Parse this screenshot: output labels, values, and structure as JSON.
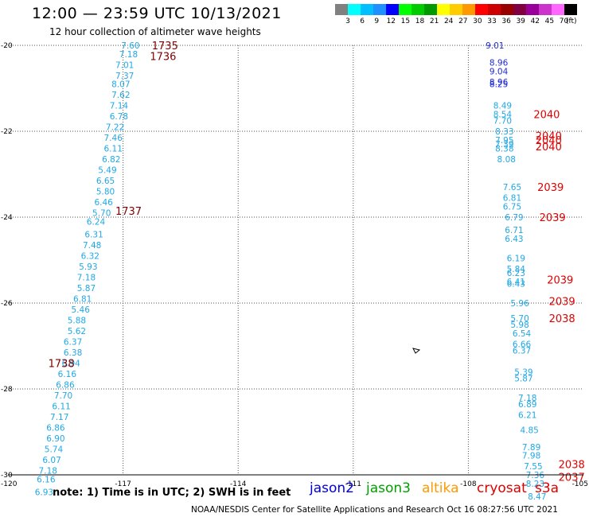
{
  "header": {
    "title": "12:00 — 23:59 UTC 10/13/2021",
    "subtitle": "12 hour collection of altimeter wave heights"
  },
  "color_scale": {
    "unit": "(ft)",
    "ticks": [
      "3",
      "6",
      "9",
      "12",
      "15",
      "18",
      "21",
      "24",
      "27",
      "30",
      "33",
      "36",
      "39",
      "42",
      "45",
      "70"
    ],
    "colors": [
      "#808080",
      "#00ffff",
      "#00bfff",
      "#1e90ff",
      "#0000ff",
      "#00ff00",
      "#00cc00",
      "#009900",
      "#ffff00",
      "#ffcc00",
      "#ff9900",
      "#ff0000",
      "#cc0000",
      "#990000",
      "#800040",
      "#990099",
      "#cc33cc",
      "#ff66ff",
      "#000000"
    ]
  },
  "axes": {
    "lat_labels": [
      "-20",
      "-22",
      "-24",
      "-26",
      "-28",
      "-30"
    ],
    "lon_labels": [
      "-120",
      "-117",
      "-114",
      "-111",
      "-108",
      "-105"
    ]
  },
  "pass_labels": {
    "west": [
      {
        "text": "1735",
        "lat": -20.0,
        "lon": -116.25
      },
      {
        "text": "1736",
        "lat": -20.25,
        "lon": -116.3
      },
      {
        "text": "1737",
        "lat": -23.85,
        "lon": -117.2
      },
      {
        "text": "1738",
        "lat": -27.4,
        "lon": -118.95
      }
    ],
    "east": [
      {
        "text": "2040",
        "lat": -21.6,
        "lon": -106.3
      },
      {
        "text": "2040",
        "lat": -22.1,
        "lon": -106.25
      },
      {
        "text": "2040",
        "lat": -22.2,
        "lon": -106.25
      },
      {
        "text": "2040",
        "lat": -22.35,
        "lon": -106.25
      },
      {
        "text": "2039",
        "lat": -23.3,
        "lon": -106.2
      },
      {
        "text": "2039",
        "lat": -24.0,
        "lon": -106.15
      },
      {
        "text": "2039",
        "lat": -25.45,
        "lon": -105.95
      },
      {
        "text": "2039",
        "lat": -25.95,
        "lon": -105.9
      },
      {
        "text": "2038",
        "lat": -26.35,
        "lon": -105.9
      },
      {
        "text": "2038",
        "lat": -29.75,
        "lon": -105.65
      },
      {
        "text": "2037",
        "lat": -30.05,
        "lon": -105.65
      }
    ]
  },
  "tracks": {
    "west": [
      {
        "v": "7.60",
        "lat": -20.0,
        "lon": -117.05
      },
      {
        "v": "7.18",
        "lat": -20.2,
        "lon": -117.1
      },
      {
        "v": "7.01",
        "lat": -20.45,
        "lon": -117.2
      },
      {
        "v": "7.37",
        "lat": -20.7,
        "lon": -117.2
      },
      {
        "v": "8.07",
        "lat": -20.9,
        "lon": -117.3
      },
      {
        "v": "7.62",
        "lat": -21.15,
        "lon": -117.3
      },
      {
        "v": "7.14",
        "lat": -21.4,
        "lon": -117.35
      },
      {
        "v": "6.78",
        "lat": -21.65,
        "lon": -117.35
      },
      {
        "v": "7.22",
        "lat": -21.9,
        "lon": -117.45
      },
      {
        "v": "7.46",
        "lat": -22.15,
        "lon": -117.5
      },
      {
        "v": "6.11",
        "lat": -22.4,
        "lon": -117.5
      },
      {
        "v": "6.82",
        "lat": -22.65,
        "lon": -117.55
      },
      {
        "v": "5.49",
        "lat": -22.9,
        "lon": -117.65
      },
      {
        "v": "6.65",
        "lat": -23.15,
        "lon": -117.7
      },
      {
        "v": "5.80",
        "lat": -23.4,
        "lon": -117.7
      },
      {
        "v": "6.46",
        "lat": -23.65,
        "lon": -117.75
      },
      {
        "v": "5.70",
        "lat": -23.9,
        "lon": -117.8
      },
      {
        "v": "6.24",
        "lat": -24.1,
        "lon": -117.95
      },
      {
        "v": "6.31",
        "lat": -24.4,
        "lon": -118.0
      },
      {
        "v": "7.48",
        "lat": -24.65,
        "lon": -118.05
      },
      {
        "v": "6.32",
        "lat": -24.9,
        "lon": -118.1
      },
      {
        "v": "5.93",
        "lat": -25.15,
        "lon": -118.15
      },
      {
        "v": "7.18",
        "lat": -25.4,
        "lon": -118.2
      },
      {
        "v": "5.87",
        "lat": -25.65,
        "lon": -118.2
      },
      {
        "v": "6.81",
        "lat": -25.9,
        "lon": -118.3
      },
      {
        "v": "5.46",
        "lat": -26.15,
        "lon": -118.35
      },
      {
        "v": "5.88",
        "lat": -26.4,
        "lon": -118.45
      },
      {
        "v": "5.62",
        "lat": -26.65,
        "lon": -118.45
      },
      {
        "v": "6.37",
        "lat": -26.9,
        "lon": -118.55
      },
      {
        "v": "6.38",
        "lat": -27.15,
        "lon": -118.55
      },
      {
        "v": "6.94",
        "lat": -27.4,
        "lon": -118.6
      },
      {
        "v": "6.16",
        "lat": -27.65,
        "lon": -118.7
      },
      {
        "v": "6.86",
        "lat": -27.9,
        "lon": -118.75
      },
      {
        "v": "7.70",
        "lat": -28.15,
        "lon": -118.8
      },
      {
        "v": "6.11",
        "lat": -28.4,
        "lon": -118.85
      },
      {
        "v": "7.17",
        "lat": -28.65,
        "lon": -118.9
      },
      {
        "v": "6.86",
        "lat": -28.9,
        "lon": -119.0
      },
      {
        "v": "6.90",
        "lat": -29.15,
        "lon": -119.0
      },
      {
        "v": "5.74",
        "lat": -29.4,
        "lon": -119.05
      },
      {
        "v": "6.07",
        "lat": -29.65,
        "lon": -119.1
      },
      {
        "v": "7.18",
        "lat": -29.9,
        "lon": -119.2
      },
      {
        "v": "6.16",
        "lat": -30.1,
        "lon": -119.25
      },
      {
        "v": "6.93",
        "lat": -30.4,
        "lon": -119.3
      }
    ],
    "east_blue": [
      {
        "v": "9.01",
        "lat": -20.0,
        "lon": -107.55
      },
      {
        "v": "8.96",
        "lat": -20.4,
        "lon": -107.45
      },
      {
        "v": "9.04",
        "lat": -20.6,
        "lon": -107.45
      },
      {
        "v": "8.96",
        "lat": -20.85,
        "lon": -107.45
      },
      {
        "v": "8.25",
        "lat": -20.9,
        "lon": -107.45
      }
    ],
    "east": [
      {
        "v": "8.49",
        "lat": -21.4,
        "lon": -107.35
      },
      {
        "v": "8.54",
        "lat": -21.6,
        "lon": -107.35
      },
      {
        "v": "7.70",
        "lat": -21.75,
        "lon": -107.35
      },
      {
        "v": "8.33",
        "lat": -22.0,
        "lon": -107.3
      },
      {
        "v": "7.95",
        "lat": -22.2,
        "lon": -107.3
      },
      {
        "v": "7.39",
        "lat": -22.3,
        "lon": -107.3
      },
      {
        "v": "8.38",
        "lat": -22.4,
        "lon": -107.3
      },
      {
        "v": "8.08",
        "lat": -22.65,
        "lon": -107.25
      },
      {
        "v": "7.65",
        "lat": -23.3,
        "lon": -107.1
      },
      {
        "v": "6.81",
        "lat": -23.55,
        "lon": -107.1
      },
      {
        "v": "6.75",
        "lat": -23.75,
        "lon": -107.1
      },
      {
        "v": "6.79",
        "lat": -24.0,
        "lon": -107.05
      },
      {
        "v": "6.71",
        "lat": -24.3,
        "lon": -107.05
      },
      {
        "v": "6.43",
        "lat": -24.5,
        "lon": -107.05
      },
      {
        "v": "6.19",
        "lat": -24.95,
        "lon": -107.0
      },
      {
        "v": "5.84",
        "lat": -25.2,
        "lon": -107.0
      },
      {
        "v": "6.23",
        "lat": -25.3,
        "lon": -107.0
      },
      {
        "v": "6.41",
        "lat": -25.5,
        "lon": -107.0
      },
      {
        "v": "6.43",
        "lat": -25.55,
        "lon": -107.0
      },
      {
        "v": "5.96",
        "lat": -26.0,
        "lon": -106.9
      },
      {
        "v": "5.70",
        "lat": -26.35,
        "lon": -106.9
      },
      {
        "v": "5.98",
        "lat": -26.5,
        "lon": -106.9
      },
      {
        "v": "6.54",
        "lat": -26.7,
        "lon": -106.85
      },
      {
        "v": "6.66",
        "lat": -26.95,
        "lon": -106.85
      },
      {
        "v": "6.37",
        "lat": -27.1,
        "lon": -106.85
      },
      {
        "v": "5.39",
        "lat": -27.6,
        "lon": -106.8
      },
      {
        "v": "5.87",
        "lat": -27.75,
        "lon": -106.8
      },
      {
        "v": "7.18",
        "lat": -28.2,
        "lon": -106.7
      },
      {
        "v": "6.89",
        "lat": -28.35,
        "lon": -106.7
      },
      {
        "v": "6.21",
        "lat": -28.6,
        "lon": -106.7
      },
      {
        "v": "4.85",
        "lat": -28.95,
        "lon": -106.65
      },
      {
        "v": "7.89",
        "lat": -29.35,
        "lon": -106.6
      },
      {
        "v": "7.98",
        "lat": -29.55,
        "lon": -106.6
      },
      {
        "v": "7.55",
        "lat": -29.8,
        "lon": -106.55
      },
      {
        "v": "7.36",
        "lat": -30.0,
        "lon": -106.5
      },
      {
        "v": "8.23",
        "lat": -30.2,
        "lon": -106.5
      },
      {
        "v": "8.47",
        "lat": -30.5,
        "lon": -106.45
      }
    ]
  },
  "footer": {
    "note": "note: 1) Time is in UTC; 2) SWH is in feet",
    "legend": [
      {
        "name": "jason2",
        "color": "#0000dd"
      },
      {
        "name": "jason3",
        "color": "#00a000"
      },
      {
        "name": "altika",
        "color": "#ff9900"
      },
      {
        "name": "cryosat",
        "color": "#dd0000"
      },
      {
        "name": "s3a",
        "color": "#dd0000"
      }
    ],
    "credit": "NOAA/NESDIS Center for Satellite Applications and Research    Oct 16 08:27:56 UTC 2021"
  },
  "colors": {
    "west_value": "#1fa8e6",
    "east_blue_value": "#1e2ad6",
    "west_pass": "#800000",
    "east_pass": "#e00000",
    "grid": "#555555"
  }
}
